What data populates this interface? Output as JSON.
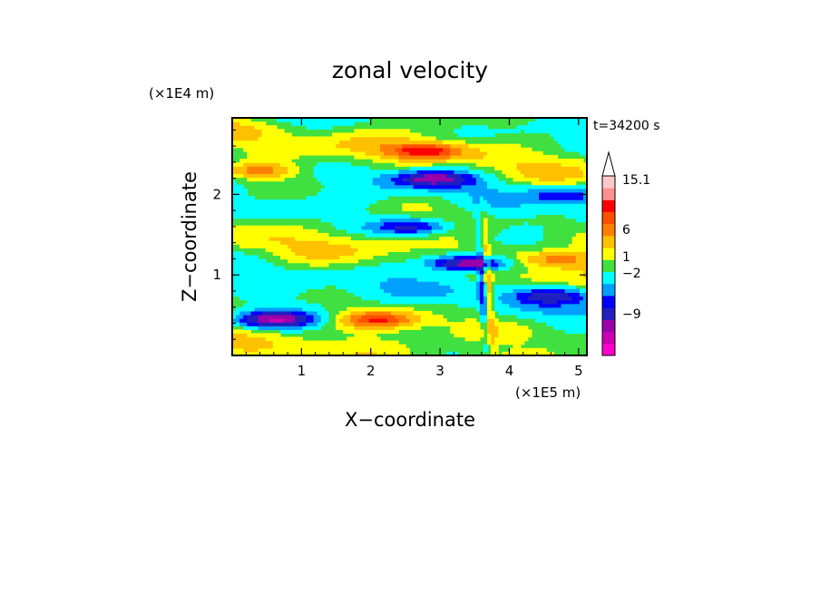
{
  "chart_data": {
    "type": "heatmap",
    "title": "zonal velocity",
    "time_label": "t=34200 s",
    "xlabel": "X−coordinate",
    "ylabel": "Z−coordinate",
    "x_scale_label": "(×1E5 m)",
    "y_scale_label": "(×1E4 m)",
    "xlim": [
      0,
      5.12
    ],
    "ylim": [
      0,
      2.95
    ],
    "x_ticks": [
      "1",
      "2",
      "3",
      "4",
      "5"
    ],
    "y_ticks": [
      "1",
      "2"
    ],
    "x_tick_values": [
      1,
      2,
      3,
      4,
      5
    ],
    "y_tick_values": [
      1,
      2
    ],
    "colorbar": {
      "colors": [
        "#ff00cc",
        "#cc00b3",
        "#9900aa",
        "#2020c0",
        "#0000ff",
        "#00a0ff",
        "#00ffff",
        "#40e040",
        "#ffff00",
        "#ffc000",
        "#ff8000",
        "#ff5000",
        "#ff0000",
        "#ff9090",
        "#ffc8c8"
      ],
      "labels": [
        "15.1",
        "6",
        "1",
        "−2",
        "−9"
      ],
      "label_values": [
        15.1,
        6,
        1,
        -2,
        -9
      ]
    },
    "features": [
      {
        "x": 0.6,
        "z": 0.45,
        "u": -8
      },
      {
        "x": 3.4,
        "z": 1.15,
        "u": -10
      },
      {
        "x": 2.6,
        "z": 1.6,
        "u": -6
      },
      {
        "x": 2.9,
        "z": 2.2,
        "u": -7
      },
      {
        "x": 2.8,
        "z": 2.55,
        "u": 6
      },
      {
        "x": 2.1,
        "z": 0.45,
        "u": 5
      },
      {
        "x": 4.6,
        "z": 0.75,
        "u": -5
      },
      {
        "x": 4.7,
        "z": 1.2,
        "u": 4
      },
      {
        "x": 0.4,
        "z": 2.3,
        "u": 4
      },
      {
        "x": 4.8,
        "z": 2.0,
        "u": -4
      }
    ]
  }
}
